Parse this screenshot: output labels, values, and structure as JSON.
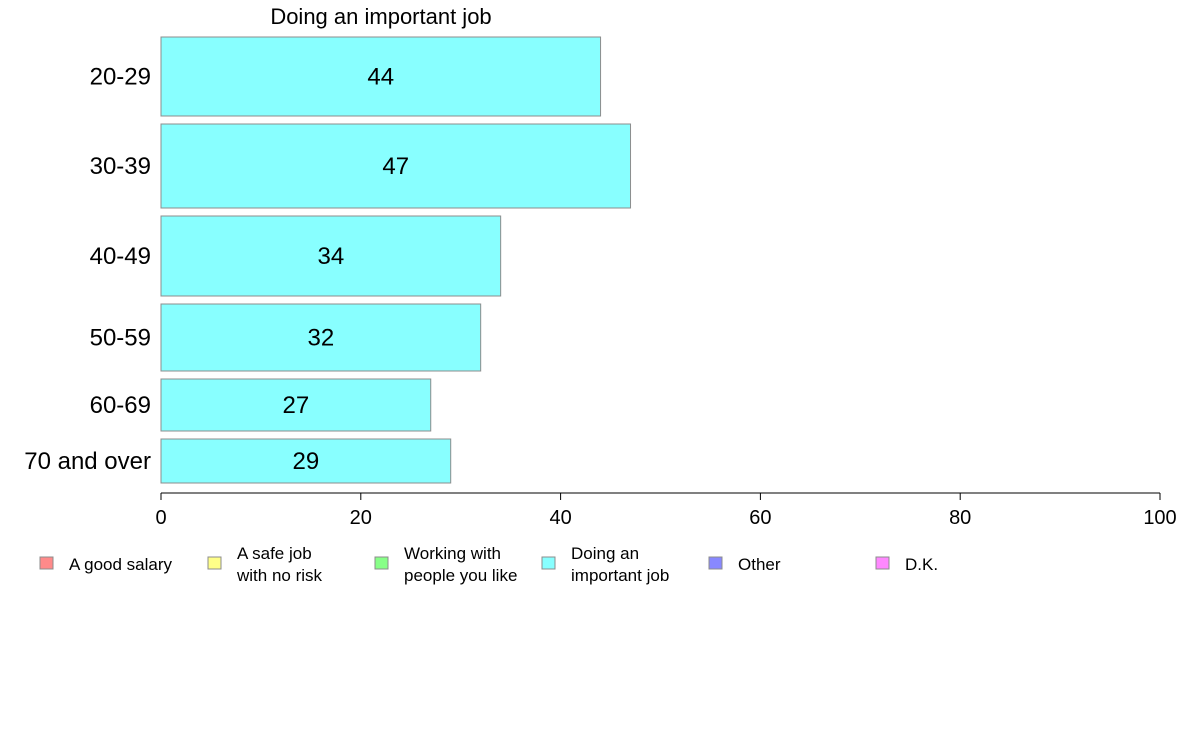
{
  "chart_data": {
    "type": "bar",
    "orientation": "horizontal",
    "title": "Doing an important job",
    "categories": [
      "20-29",
      "30-39",
      "40-49",
      "50-59",
      "60-69",
      "70 and over"
    ],
    "values": [
      44,
      47,
      34,
      32,
      27,
      29
    ],
    "data_labels": [
      "44",
      "47",
      "34",
      "32",
      "27",
      "29"
    ],
    "xlim": [
      0,
      100
    ],
    "x_ticks": [
      0,
      20,
      40,
      60,
      80,
      100
    ],
    "x_tick_labels": [
      "0",
      "20",
      "40",
      "60",
      "80",
      "100"
    ],
    "bar_color": "#88ffff",
    "bar_stroke": "#8c8c8c",
    "grid": false,
    "legend_position": "bottom",
    "legend": [
      {
        "lines": [
          "A good salary"
        ],
        "color": "#ff8a8a"
      },
      {
        "lines": [
          "A safe job",
          "with no risk"
        ],
        "color": "#ffff88"
      },
      {
        "lines": [
          "Working with",
          "people you like"
        ],
        "color": "#88ff88"
      },
      {
        "lines": [
          "Doing an",
          "important job"
        ],
        "color": "#88ffff"
      },
      {
        "lines": [
          "Other"
        ],
        "color": "#8888ff"
      },
      {
        "lines": [
          "D.K."
        ],
        "color": "#ff88ff"
      }
    ]
  }
}
